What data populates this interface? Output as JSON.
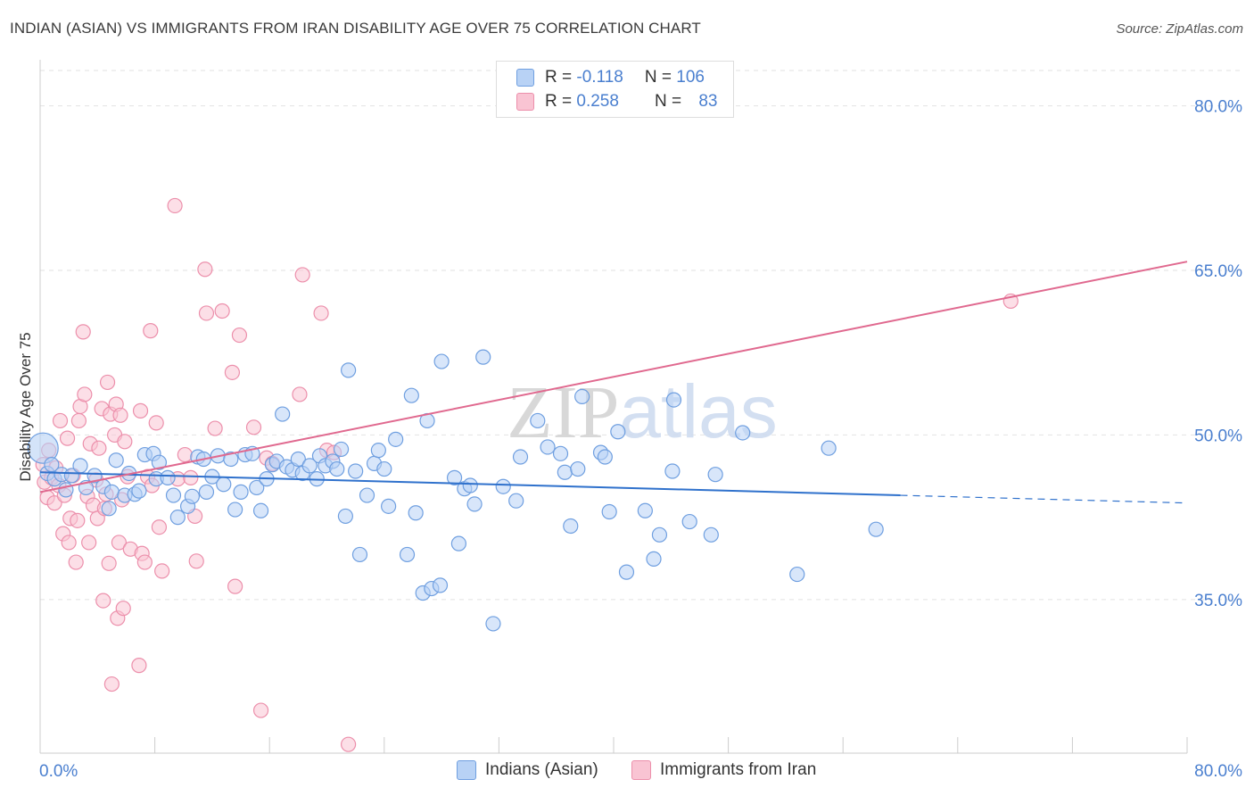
{
  "title": "INDIAN (ASIAN) VS IMMIGRANTS FROM IRAN DISABILITY AGE OVER 75 CORRELATION CHART",
  "source": "Source: ZipAtlas.com",
  "watermark": "ZIPatlas",
  "colors": {
    "series1_fill": "#b8d2f5",
    "series1_stroke": "#6f9fe0",
    "series1_line": "#2f71cc",
    "series2_fill": "#f9c4d3",
    "series2_stroke": "#ec8fab",
    "series2_line": "#e0698f",
    "axis_label": "#4a7fcf",
    "grid": "#e2e2e2"
  },
  "stats": {
    "row1": {
      "r_label": "R =",
      "r_value": "-0.118",
      "n_label": "N =",
      "n_value": "106"
    },
    "row2": {
      "r_label": "R =",
      "r_value": "0.258",
      "n_label": "N =",
      "n_value": "83"
    }
  },
  "legend": {
    "series1": "Indians (Asian)",
    "series2": "Immigrants from Iran"
  },
  "chart_data": {
    "type": "scatter",
    "xlabel": "",
    "ylabel": "Disability Age Over 75",
    "xlim": [
      0,
      80
    ],
    "ylim": [
      21,
      81
    ],
    "x_tick_labels": [
      "0.0%",
      "80.0%"
    ],
    "y_ticks": [
      35,
      50,
      65,
      80
    ],
    "y_tick_labels": [
      "35.0%",
      "50.0%",
      "65.0%",
      "80.0%"
    ],
    "grid": true,
    "series": [
      {
        "name": "Indians (Asian)",
        "trend": {
          "x0": 0,
          "y0": 46.6,
          "x1": 60,
          "y1": 44.5,
          "dash_to_x": 80,
          "dash_to_y": 43.8
        },
        "points": [
          [
            0.2,
            48.8
          ],
          [
            0.5,
            46.5
          ],
          [
            0.8,
            47.3
          ],
          [
            1.0,
            46.0
          ],
          [
            1.5,
            46.4
          ],
          [
            1.8,
            45.0
          ],
          [
            2.2,
            46.3
          ],
          [
            2.8,
            47.2
          ],
          [
            3.2,
            45.2
          ],
          [
            3.8,
            46.3
          ],
          [
            4.4,
            45.3
          ],
          [
            4.8,
            43.3
          ],
          [
            5.0,
            44.8
          ],
          [
            5.3,
            47.7
          ],
          [
            5.9,
            44.5
          ],
          [
            6.2,
            46.5
          ],
          [
            6.6,
            44.6
          ],
          [
            6.9,
            44.9
          ],
          [
            7.3,
            48.2
          ],
          [
            7.9,
            48.3
          ],
          [
            8.1,
            46.0
          ],
          [
            8.3,
            47.5
          ],
          [
            8.9,
            46.1
          ],
          [
            9.3,
            44.5
          ],
          [
            9.6,
            42.5
          ],
          [
            10.3,
            43.5
          ],
          [
            10.6,
            44.4
          ],
          [
            11.0,
            48.0
          ],
          [
            11.4,
            47.8
          ],
          [
            11.6,
            44.8
          ],
          [
            12.0,
            46.2
          ],
          [
            12.4,
            48.1
          ],
          [
            12.8,
            45.5
          ],
          [
            13.3,
            47.8
          ],
          [
            13.6,
            43.2
          ],
          [
            14.0,
            44.8
          ],
          [
            14.3,
            48.2
          ],
          [
            14.8,
            48.3
          ],
          [
            15.1,
            45.2
          ],
          [
            15.4,
            43.1
          ],
          [
            15.8,
            46.0
          ],
          [
            16.2,
            47.3
          ],
          [
            16.5,
            47.6
          ],
          [
            16.9,
            51.9
          ],
          [
            17.2,
            47.1
          ],
          [
            17.6,
            46.8
          ],
          [
            18.0,
            47.8
          ],
          [
            18.3,
            46.5
          ],
          [
            18.8,
            47.2
          ],
          [
            19.3,
            46.0
          ],
          [
            19.5,
            48.1
          ],
          [
            19.9,
            47.2
          ],
          [
            20.4,
            47.6
          ],
          [
            20.7,
            46.9
          ],
          [
            21.0,
            48.7
          ],
          [
            21.3,
            42.6
          ],
          [
            21.5,
            55.9
          ],
          [
            22.0,
            46.7
          ],
          [
            22.3,
            39.1
          ],
          [
            22.8,
            44.5
          ],
          [
            23.3,
            47.4
          ],
          [
            23.6,
            48.6
          ],
          [
            24.0,
            46.9
          ],
          [
            24.3,
            43.5
          ],
          [
            24.8,
            49.6
          ],
          [
            25.6,
            39.1
          ],
          [
            25.9,
            53.6
          ],
          [
            26.2,
            42.9
          ],
          [
            26.7,
            35.6
          ],
          [
            27.0,
            51.3
          ],
          [
            27.3,
            36.0
          ],
          [
            27.9,
            36.3
          ],
          [
            28.0,
            56.7
          ],
          [
            28.9,
            46.1
          ],
          [
            29.2,
            40.1
          ],
          [
            29.6,
            45.1
          ],
          [
            30.0,
            45.4
          ],
          [
            30.3,
            43.7
          ],
          [
            30.9,
            57.1
          ],
          [
            31.6,
            32.8
          ],
          [
            32.3,
            45.3
          ],
          [
            33.2,
            44.0
          ],
          [
            33.5,
            48.0
          ],
          [
            34.7,
            51.3
          ],
          [
            35.4,
            48.9
          ],
          [
            36.3,
            48.3
          ],
          [
            36.6,
            46.6
          ],
          [
            37.0,
            41.7
          ],
          [
            37.5,
            46.9
          ],
          [
            37.8,
            53.5
          ],
          [
            39.1,
            48.4
          ],
          [
            39.4,
            48.0
          ],
          [
            39.7,
            43.0
          ],
          [
            40.3,
            50.3
          ],
          [
            40.9,
            37.5
          ],
          [
            42.2,
            43.1
          ],
          [
            42.8,
            38.7
          ],
          [
            43.2,
            40.9
          ],
          [
            44.1,
            46.7
          ],
          [
            44.2,
            53.2
          ],
          [
            45.3,
            42.1
          ],
          [
            46.8,
            40.9
          ],
          [
            47.1,
            46.4
          ],
          [
            49.0,
            50.2
          ],
          [
            52.8,
            37.3
          ],
          [
            55.0,
            48.8
          ],
          [
            58.3,
            41.4
          ]
        ]
      },
      {
        "name": "Immigrants from Iran",
        "trend": {
          "x0": 0,
          "y0": 44.8,
          "x1": 80,
          "y1": 65.8
        },
        "points": [
          [
            0.2,
            47.3
          ],
          [
            0.3,
            45.7
          ],
          [
            0.5,
            44.3
          ],
          [
            0.6,
            48.6
          ],
          [
            0.8,
            46.1
          ],
          [
            1.0,
            43.8
          ],
          [
            1.1,
            47.0
          ],
          [
            1.3,
            45.4
          ],
          [
            1.4,
            51.3
          ],
          [
            1.6,
            41.0
          ],
          [
            1.7,
            44.5
          ],
          [
            1.9,
            49.7
          ],
          [
            2.0,
            40.2
          ],
          [
            2.1,
            42.4
          ],
          [
            2.3,
            46.3
          ],
          [
            2.5,
            38.4
          ],
          [
            2.6,
            42.2
          ],
          [
            2.7,
            51.3
          ],
          [
            2.8,
            52.6
          ],
          [
            3.0,
            59.4
          ],
          [
            3.1,
            53.7
          ],
          [
            3.3,
            44.4
          ],
          [
            3.4,
            40.2
          ],
          [
            3.5,
            49.2
          ],
          [
            3.7,
            43.6
          ],
          [
            3.9,
            45.9
          ],
          [
            4.0,
            42.4
          ],
          [
            4.1,
            48.8
          ],
          [
            4.3,
            52.4
          ],
          [
            4.4,
            34.9
          ],
          [
            4.5,
            43.3
          ],
          [
            4.6,
            44.6
          ],
          [
            4.7,
            54.8
          ],
          [
            4.8,
            38.3
          ],
          [
            4.9,
            51.9
          ],
          [
            5.0,
            27.3
          ],
          [
            5.2,
            50.0
          ],
          [
            5.3,
            52.8
          ],
          [
            5.4,
            33.3
          ],
          [
            5.5,
            40.2
          ],
          [
            5.6,
            51.8
          ],
          [
            5.7,
            44.1
          ],
          [
            5.8,
            34.2
          ],
          [
            5.9,
            49.4
          ],
          [
            6.1,
            46.2
          ],
          [
            6.3,
            39.6
          ],
          [
            6.9,
            29.0
          ],
          [
            7.0,
            52.2
          ],
          [
            7.1,
            39.2
          ],
          [
            7.3,
            38.4
          ],
          [
            7.5,
            46.2
          ],
          [
            7.7,
            59.5
          ],
          [
            7.8,
            45.4
          ],
          [
            8.1,
            51.1
          ],
          [
            8.3,
            41.6
          ],
          [
            8.5,
            37.6
          ],
          [
            9.4,
            70.9
          ],
          [
            9.6,
            46.0
          ],
          [
            10.1,
            48.2
          ],
          [
            10.5,
            46.1
          ],
          [
            10.8,
            42.6
          ],
          [
            10.9,
            38.5
          ],
          [
            11.5,
            65.1
          ],
          [
            11.6,
            61.1
          ],
          [
            12.2,
            50.6
          ],
          [
            12.7,
            61.3
          ],
          [
            13.4,
            55.7
          ],
          [
            13.6,
            36.2
          ],
          [
            13.9,
            59.1
          ],
          [
            14.9,
            50.7
          ],
          [
            15.4,
            24.9
          ],
          [
            15.8,
            47.9
          ],
          [
            16.2,
            47.4
          ],
          [
            18.1,
            53.7
          ],
          [
            18.3,
            64.6
          ],
          [
            19.6,
            61.1
          ],
          [
            20.0,
            48.6
          ],
          [
            20.5,
            48.4
          ],
          [
            21.5,
            21.8
          ],
          [
            67.7,
            62.2
          ]
        ]
      }
    ]
  }
}
